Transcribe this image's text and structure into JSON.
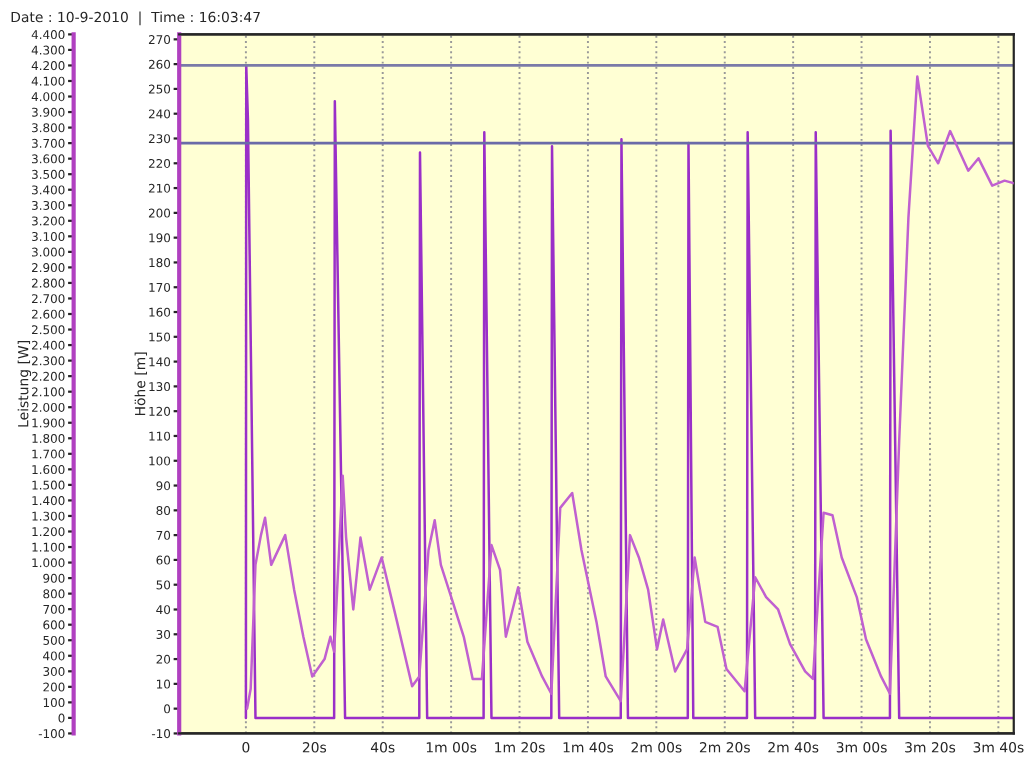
{
  "chart_data": {
    "type": "line",
    "title": "Date : 10-9-2010  |  Time : 16:03:47",
    "ylabel": "Leistung [W]",
    "y2label": "Höhe [m]",
    "xlim": [
      -19.5,
      224.5
    ],
    "ylim": [
      -100,
      4400
    ],
    "y2lim": [
      -10,
      272
    ],
    "xticks": [
      {
        "value": 0,
        "label": "0"
      },
      {
        "value": 20,
        "label": "20s"
      },
      {
        "value": 40,
        "label": "40s"
      },
      {
        "value": 60,
        "label": "1m 00s"
      },
      {
        "value": 80,
        "label": "1m 20s"
      },
      {
        "value": 100,
        "label": "1m 40s"
      },
      {
        "value": 120,
        "label": "2m 00s"
      },
      {
        "value": 140,
        "label": "2m 20s"
      },
      {
        "value": 160,
        "label": "2m 40s"
      },
      {
        "value": 180,
        "label": "3m 00s"
      },
      {
        "value": 200,
        "label": "3m 20s"
      },
      {
        "value": 220,
        "label": "3m 40s"
      }
    ],
    "yticks": [
      -100,
      0,
      100,
      200,
      300,
      400,
      500,
      600,
      700,
      800,
      900,
      {
        "value": 1000,
        "label": "1.000"
      },
      {
        "value": 1100,
        "label": "1.100"
      },
      {
        "value": 1200,
        "label": "1.200"
      },
      {
        "value": 1300,
        "label": "1.300"
      },
      {
        "value": 1400,
        "label": "1.400"
      },
      {
        "value": 1500,
        "label": "1.500"
      },
      {
        "value": 1600,
        "label": "1.600"
      },
      {
        "value": 1700,
        "label": "1.700"
      },
      {
        "value": 1800,
        "label": "1.800"
      },
      {
        "value": 1900,
        "label": "1.900"
      },
      {
        "value": 2000,
        "label": "2.000"
      },
      {
        "value": 2100,
        "label": "2.100"
      },
      {
        "value": 2200,
        "label": "2.200"
      },
      {
        "value": 2300,
        "label": "2.300"
      },
      {
        "value": 2400,
        "label": "2.400"
      },
      {
        "value": 2500,
        "label": "2.500"
      },
      {
        "value": 2600,
        "label": "2.600"
      },
      {
        "value": 2700,
        "label": "2.700"
      },
      {
        "value": 2800,
        "label": "2.800"
      },
      {
        "value": 2900,
        "label": "2.900"
      },
      {
        "value": 3000,
        "label": "3.000"
      },
      {
        "value": 3100,
        "label": "3.100"
      },
      {
        "value": 3200,
        "label": "3.200"
      },
      {
        "value": 3300,
        "label": "3.300"
      },
      {
        "value": 3400,
        "label": "3.400"
      },
      {
        "value": 3500,
        "label": "3.500"
      },
      {
        "value": 3600,
        "label": "3.600"
      },
      {
        "value": 3700,
        "label": "3.700"
      },
      {
        "value": 3800,
        "label": "3.800"
      },
      {
        "value": 3900,
        "label": "3.900"
      },
      {
        "value": 4000,
        "label": "4.000"
      },
      {
        "value": 4100,
        "label": "4.100"
      },
      {
        "value": 4200,
        "label": "4.200"
      },
      {
        "value": 4300,
        "label": "4.300"
      },
      {
        "value": 4400,
        "label": "4.400"
      }
    ],
    "y2ticks": [
      -10,
      0,
      10,
      20,
      30,
      40,
      50,
      60,
      70,
      80,
      90,
      100,
      110,
      120,
      130,
      140,
      150,
      160,
      170,
      180,
      190,
      200,
      210,
      220,
      230,
      240,
      250,
      260,
      270
    ],
    "grid": "x",
    "legend": false,
    "ref_lines": [
      {
        "axis": "y",
        "value": 4200,
        "color": "#7a7aa8"
      },
      {
        "axis": "y",
        "value": 3700,
        "color": "#6a6aa8"
      }
    ],
    "series": [
      {
        "color": "#9a2fc8",
        "x": [
          0,
          0.1,
          0.6,
          2.8,
          25.8,
          26.0,
          29.0,
          50.7,
          50.9,
          53.0,
          69.5,
          69.7,
          71.8,
          89.3,
          89.5,
          91.6,
          109.6,
          109.8,
          111.7,
          129.2,
          129.4,
          130.8,
          146.5,
          146.7,
          148.9,
          166.4,
          166.6,
          168.9,
          188.3,
          188.5,
          191.0,
          224.4
        ],
        "values": [
          0,
          4200,
          3850,
          0,
          0,
          3970,
          0,
          0,
          3640,
          0,
          0,
          3770,
          0,
          0,
          3680,
          0,
          0,
          3725,
          0,
          0,
          3700,
          0,
          0,
          3770,
          0,
          0,
          3770,
          0,
          0,
          3780,
          0,
          0
        ]
      },
      {
        "color": "#c060d0",
        "axis": "y2",
        "x": [
          0.35,
          1.4,
          2.8,
          4.4,
          5.6,
          7.4,
          11.5,
          14.1,
          16.8,
          19.4,
          23.0,
          24.7,
          25.8,
          28.3,
          29.3,
          31.4,
          33.5,
          36.2,
          39.7,
          44.2,
          48.6,
          50.7,
          53.4,
          55.2,
          57.0,
          60.5,
          63.7,
          66.3,
          69.0,
          71.8,
          74.3,
          76.0,
          79.6,
          82.3,
          86.6,
          89.3,
          91.9,
          95.4,
          98.1,
          102.5,
          105.2,
          109.6,
          112.3,
          114.9,
          117.6,
          120.2,
          122.0,
          125.5,
          129.0,
          131.2,
          134.3,
          137.9,
          140.5,
          145.8,
          148.9,
          152.1,
          155.6,
          159.1,
          163.5,
          165.8,
          168.9,
          171.5,
          174.2,
          178.6,
          181.3,
          185.7,
          188.3,
          191.0,
          193.7,
          196.3,
          199.4,
          202.4,
          205.9,
          211.2,
          214.2,
          218.2,
          221.8,
          224.4
        ],
        "values": [
          0,
          8,
          58,
          70,
          77,
          58,
          70,
          48,
          29,
          13,
          20,
          29,
          23,
          94,
          69,
          40,
          69,
          48,
          61,
          35,
          9,
          13,
          64,
          76,
          58,
          43,
          29,
          12,
          12,
          66,
          56,
          29,
          49,
          27,
          13,
          6,
          81,
          87,
          64,
          35,
          13,
          3,
          70,
          61,
          48,
          24,
          36,
          15,
          24,
          61,
          35,
          33,
          16,
          7,
          53,
          45,
          40,
          26,
          15,
          12,
          79,
          78,
          61,
          45,
          28,
          13,
          6,
          108,
          198,
          255,
          227,
          220,
          233,
          217,
          222,
          211,
          213,
          212
        ]
      }
    ]
  }
}
